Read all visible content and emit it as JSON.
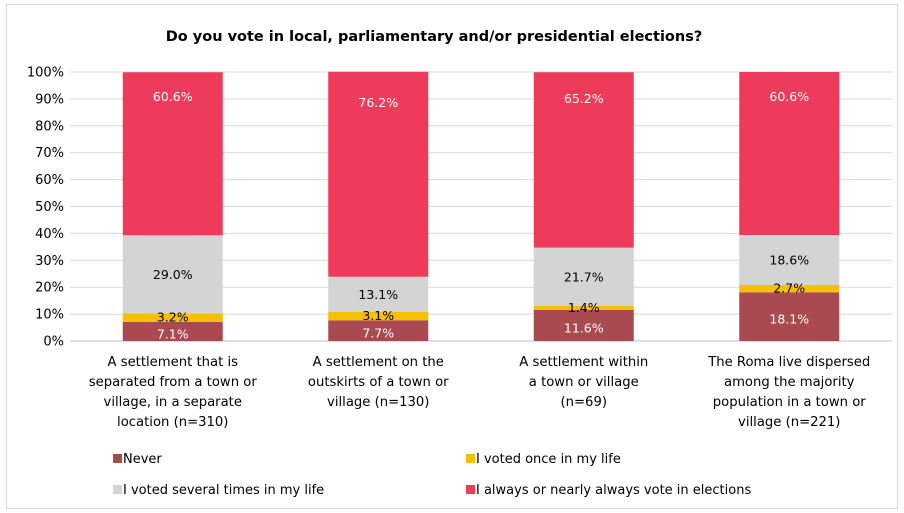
{
  "chart_data": {
    "type": "bar",
    "stacked": true,
    "percent": true,
    "title": "Do you vote in local, parliamentary and/or presidential elections?",
    "ylim": [
      0,
      100
    ],
    "yticks": [
      "0%",
      "10%",
      "20%",
      "30%",
      "40%",
      "50%",
      "60%",
      "70%",
      "80%",
      "90%",
      "100%"
    ],
    "grid": true,
    "legend_position": "bottom",
    "categories": [
      [
        "A settlement that is",
        "separated from a town or",
        "village, in a separate",
        "location (n=310)"
      ],
      [
        "A settlement on the",
        "outskirts of a town or",
        "village (n=130)"
      ],
      [
        "A settlement within",
        "a town or village",
        "(n=69)"
      ],
      [
        "The Roma live dispersed",
        "among the majority",
        "population in a town or",
        "village (n=221)"
      ]
    ],
    "series": [
      {
        "name": "Never",
        "color": "#a84a4f",
        "label_color": "#ffffff",
        "values": [
          7.1,
          7.7,
          11.6,
          18.1
        ],
        "labels": [
          "7.1%",
          "7.7%",
          "11.6%",
          "18.1%"
        ]
      },
      {
        "name": "I voted once in my life",
        "color": "#f5c000",
        "label_color": "#000000",
        "values": [
          3.2,
          3.1,
          1.4,
          2.7
        ],
        "labels": [
          "3.2%",
          "3.1%",
          "1.4%",
          "2.7%"
        ]
      },
      {
        "name": "I voted several times in my life",
        "color": "#d4d4d4",
        "label_color": "#000000",
        "values": [
          29.0,
          13.1,
          21.7,
          18.6
        ],
        "labels": [
          "29.0%",
          "13.1%",
          "21.7%",
          "18.6%"
        ]
      },
      {
        "name": "I always or nearly always vote in elections",
        "color": "#ee3a5b",
        "label_color": "#ffffff",
        "values": [
          60.6,
          76.2,
          65.2,
          60.6
        ],
        "labels": [
          "60.6%",
          "76.2%",
          "65.2%",
          "60.6%"
        ]
      }
    ]
  }
}
